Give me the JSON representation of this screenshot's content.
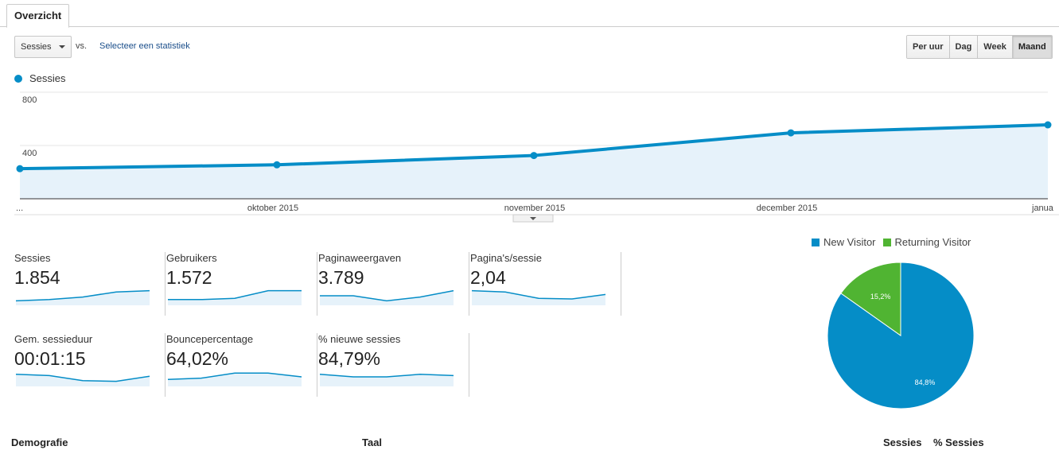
{
  "tabs": [
    {
      "label": "Overzicht"
    }
  ],
  "toolbar": {
    "metric_select": "Sessies",
    "vs_label": "vs.",
    "select_stat_link": "Selecteer een statistiek",
    "granularity": [
      {
        "label": "Per uur",
        "active": false
      },
      {
        "label": "Dag",
        "active": false
      },
      {
        "label": "Week",
        "active": false
      },
      {
        "label": "Maand",
        "active": true
      }
    ]
  },
  "chart_legend": {
    "series_label": "Sessies"
  },
  "chart_data": [
    {
      "type": "area",
      "series": [
        {
          "name": "Sessies",
          "values": [
            226,
            255,
            325,
            495,
            555
          ]
        }
      ],
      "x": [
        "...",
        "oktober 2015",
        "november 2015",
        "december 2015",
        "janua"
      ],
      "ylim": [
        0,
        800
      ],
      "yticks": [
        400,
        800
      ],
      "grid": true,
      "color": "#058dc7"
    },
    {
      "type": "pie",
      "categories": [
        "New Visitor",
        "Returning Visitor"
      ],
      "values": [
        84.8,
        15.2
      ],
      "labels": [
        "84,8%",
        "15,2%"
      ],
      "colors": [
        "#058dc7",
        "#50b432"
      ],
      "legend": "top"
    }
  ],
  "metrics": [
    {
      "label": "Sessies",
      "value": "1.854",
      "trend": [
        0.9,
        0.8,
        0.6,
        0.2,
        0.1
      ]
    },
    {
      "label": "Gebruikers",
      "value": "1.572",
      "trend": [
        0.8,
        0.8,
        0.7,
        0.1,
        0.1
      ]
    },
    {
      "label": "Paginaweergaven",
      "value": "3.789",
      "trend": [
        0.5,
        0.5,
        0.9,
        0.6,
        0.1
      ]
    },
    {
      "label": "Pagina's/sessie",
      "value": "2,04",
      "trend": [
        0.1,
        0.2,
        0.7,
        0.75,
        0.4
      ]
    },
    {
      "label": "Gem. sessieduur",
      "value": "00:01:15",
      "trend": [
        0.3,
        0.4,
        0.8,
        0.85,
        0.45
      ]
    },
    {
      "label": "Bouncepercentage",
      "value": "64,02%",
      "trend": [
        0.7,
        0.6,
        0.2,
        0.2,
        0.5
      ]
    },
    {
      "label": "% nieuwe sessies",
      "value": "84,79%",
      "trend": [
        0.3,
        0.5,
        0.5,
        0.3,
        0.4
      ]
    }
  ],
  "bottom": {
    "demografie": "Demografie",
    "taal": "Taal",
    "col_sessies": "Sessies",
    "col_pct_sessies": "% Sessies"
  },
  "colors": {
    "accent": "#058dc7",
    "returning": "#50b432",
    "area_fill": "#e6f2fa"
  }
}
